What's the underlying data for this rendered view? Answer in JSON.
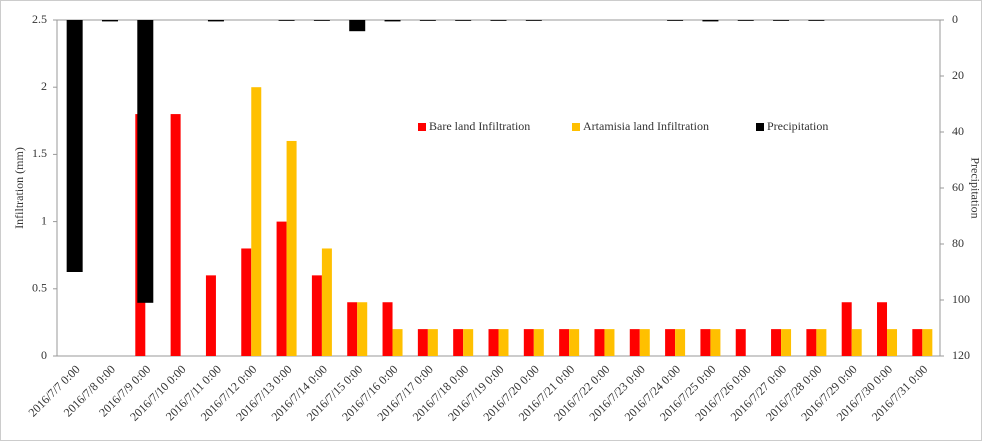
{
  "chart_data": {
    "type": "bar",
    "categories": [
      "2016/7/7 0:00",
      "2016/7/8 0:00",
      "2016/7/9 0:00",
      "2016/7/10 0:00",
      "2016/7/11 0:00",
      "2016/7/12 0:00",
      "2016/7/13 0:00",
      "2016/7/14 0:00",
      "2016/7/15 0:00",
      "2016/7/16 0:00",
      "2016/7/17 0:00",
      "2016/7/18 0:00",
      "2016/7/19 0:00",
      "2016/7/20 0:00",
      "2016/7/21 0:00",
      "2016/7/22 0:00",
      "2016/7/23 0:00",
      "2016/7/24 0:00",
      "2016/7/25 0:00",
      "2016/7/26 0:00",
      "2016/7/27 0:00",
      "2016/7/28 0:00",
      "2016/7/29 0:00",
      "2016/7/30 0:00",
      "2016/7/31 0:00"
    ],
    "series": [
      {
        "name": "Bare land Infiltration",
        "color": "#ff0000",
        "values": [
          0,
          0,
          1.8,
          1.8,
          0.6,
          0.8,
          1.0,
          0.6,
          0.4,
          0.4,
          0.2,
          0.2,
          0.2,
          0.2,
          0.2,
          0.2,
          0.2,
          0.2,
          0.2,
          0.2,
          0.2,
          0.2,
          0.4,
          0.4,
          0.2
        ]
      },
      {
        "name": "Artamisia land Infiltration",
        "color": "#ffc000",
        "values": [
          0,
          0,
          0,
          0,
          0,
          2.0,
          1.6,
          0.8,
          0.4,
          0.2,
          0.2,
          0.2,
          0.2,
          0.2,
          0.2,
          0.2,
          0.2,
          0.2,
          0.2,
          0,
          0.2,
          0.2,
          0.2,
          0.2,
          0.2
        ]
      },
      {
        "name": "Precipitation",
        "color": "#000000",
        "axis": "y2",
        "values": [
          90,
          0.5,
          101,
          0,
          0.5,
          0,
          0.3,
          0.3,
          4,
          0.5,
          0.3,
          0.3,
          0.3,
          0.3,
          0,
          0,
          0,
          0.3,
          0.5,
          0.3,
          0.3,
          0.3,
          0,
          0,
          0
        ]
      }
    ],
    "y_label": "Infiltration (mm)",
    "y2_label": "Precipitation",
    "ylim": [
      0,
      2.5
    ],
    "yticks": [
      0,
      0.5,
      1,
      1.5,
      2,
      2.5
    ],
    "y2lim": [
      0,
      120
    ],
    "y2ticks": [
      0,
      20,
      40,
      60,
      80,
      100,
      120
    ],
    "y2_inverted": true,
    "legend": "top"
  }
}
